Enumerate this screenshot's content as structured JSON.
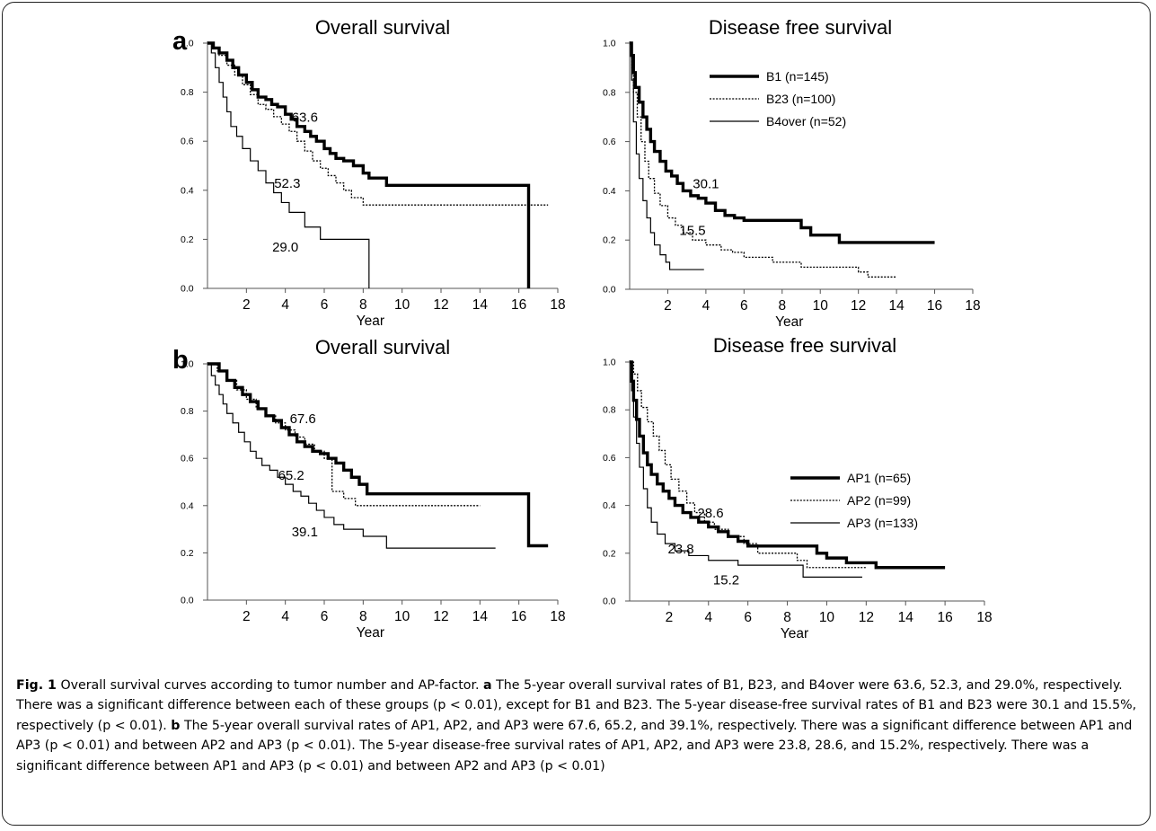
{
  "figure_label": "a",
  "figure_label_b": "b",
  "caption": {
    "fig_no": "Fig. 1",
    "title": "Overall survival curves according to tumor number and AP-factor.",
    "a_letter": "a",
    "a_text": "The 5-year overall survival rates of B1, B23, and B4over were 63.6, 52.3, and 29.0%, respectively. There was a significant difference between each of these groups (p < 0.01), except for B1 and B23. The 5-year disease-free survival rates of B1 and B23 were 30.1 and 15.5%, respectively (p < 0.01).",
    "b_letter": "b",
    "b_text": "The 5-year overall survival rates of AP1, AP2, and AP3 were 67.6, 65.2, and 39.1%, respectively. There was a significant difference between AP1 and AP3 (p < 0.01) and between AP2 and AP3 (p < 0.01). The 5-year disease-free survival rates of AP1, AP2, and AP3 were 23.8, 28.6, and 15.2%, respectively. There was a significant difference between AP1 and AP3 (p < 0.01) and between AP2 and AP3 (p < 0.01)"
  },
  "chart_data": [
    {
      "id": "a-os",
      "type": "line",
      "step": true,
      "title": "Overall survival",
      "xlabel": "Year",
      "xlim": [
        0,
        18
      ],
      "ylim": [
        0,
        1
      ],
      "xticks": [
        "2",
        "4",
        "6",
        "8",
        "10",
        "12",
        "14",
        "16",
        "18"
      ],
      "yticks": [
        "0.0",
        "0.2",
        "0.4",
        "0.6",
        "0.8",
        "1.0"
      ],
      "legend": [],
      "series": [
        {
          "style": "thick",
          "x": [
            0,
            0.3,
            0.6,
            1.0,
            1.3,
            1.6,
            2.0,
            2.3,
            2.6,
            3.0,
            3.3,
            3.6,
            4.0,
            4.3,
            4.6,
            5.0,
            5.3,
            5.6,
            6.0,
            6.3,
            6.6,
            7.0,
            7.5,
            8.0,
            8.3,
            9.2,
            16.5,
            16.5
          ],
          "y": [
            1.0,
            0.98,
            0.96,
            0.93,
            0.9,
            0.87,
            0.84,
            0.81,
            0.78,
            0.77,
            0.75,
            0.74,
            0.71,
            0.69,
            0.66,
            0.64,
            0.62,
            0.6,
            0.57,
            0.55,
            0.53,
            0.52,
            0.5,
            0.47,
            0.45,
            0.42,
            0.42,
            0.0
          ]
        },
        {
          "style": "dotted",
          "x": [
            0,
            0.3,
            0.6,
            1.0,
            1.4,
            1.8,
            2.2,
            2.6,
            3.0,
            3.4,
            3.8,
            4.2,
            4.6,
            5.0,
            5.4,
            5.8,
            6.2,
            6.6,
            7.0,
            7.4,
            8.0,
            17.5
          ],
          "y": [
            1.0,
            0.98,
            0.95,
            0.91,
            0.87,
            0.83,
            0.79,
            0.75,
            0.73,
            0.7,
            0.67,
            0.64,
            0.6,
            0.56,
            0.52,
            0.49,
            0.46,
            0.43,
            0.4,
            0.37,
            0.34,
            0.34
          ]
        },
        {
          "style": "thin",
          "x": [
            0,
            0.2,
            0.4,
            0.6,
            0.8,
            1.0,
            1.2,
            1.5,
            1.8,
            2.2,
            2.6,
            3.0,
            3.4,
            3.8,
            4.2,
            5.0,
            5.8,
            8.3,
            8.3
          ],
          "y": [
            1.0,
            0.96,
            0.9,
            0.84,
            0.78,
            0.72,
            0.66,
            0.62,
            0.57,
            0.52,
            0.48,
            0.43,
            0.39,
            0.35,
            0.31,
            0.25,
            0.2,
            0.2,
            0.0
          ]
        }
      ],
      "annotations": [
        {
          "text": "63.6",
          "x": 5.0,
          "y": 0.68
        },
        {
          "text": "52.3",
          "x": 4.1,
          "y": 0.41
        },
        {
          "text": "29.0",
          "x": 4.0,
          "y": 0.15
        }
      ]
    },
    {
      "id": "a-dfs",
      "type": "line",
      "step": true,
      "title": "Disease free survival",
      "xlabel": "Year",
      "xlim": [
        0,
        18
      ],
      "ylim": [
        0,
        1
      ],
      "xticks": [
        "2",
        "4",
        "6",
        "8",
        "10",
        "12",
        "14",
        "16",
        "18"
      ],
      "yticks": [
        "0.0",
        "0.2",
        "0.4",
        "0.6",
        "0.8",
        "1.0"
      ],
      "legend": [
        "B1 (n=145)",
        "B23 (n=100)",
        "B4over (n=52)"
      ],
      "series": [
        {
          "style": "thick",
          "x": [
            0,
            0.1,
            0.2,
            0.3,
            0.5,
            0.7,
            0.9,
            1.1,
            1.3,
            1.6,
            1.9,
            2.2,
            2.5,
            2.8,
            3.2,
            3.6,
            4.0,
            4.5,
            5.0,
            5.5,
            6.0,
            9.0,
            9.5,
            11.0,
            16.0
          ],
          "y": [
            1.0,
            0.95,
            0.88,
            0.82,
            0.76,
            0.7,
            0.65,
            0.6,
            0.56,
            0.52,
            0.48,
            0.46,
            0.43,
            0.4,
            0.38,
            0.37,
            0.35,
            0.32,
            0.3,
            0.29,
            0.28,
            0.25,
            0.22,
            0.19,
            0.19
          ]
        },
        {
          "style": "dotted",
          "x": [
            0,
            0.1,
            0.2,
            0.4,
            0.6,
            0.8,
            1.0,
            1.3,
            1.6,
            2.0,
            2.4,
            2.8,
            3.3,
            4.0,
            4.8,
            5.4,
            6.0,
            7.5,
            9.0,
            12.0,
            12.5,
            14.0
          ],
          "y": [
            1.0,
            0.9,
            0.8,
            0.7,
            0.6,
            0.52,
            0.45,
            0.39,
            0.34,
            0.29,
            0.26,
            0.23,
            0.2,
            0.18,
            0.16,
            0.15,
            0.13,
            0.11,
            0.09,
            0.07,
            0.05,
            0.05
          ]
        },
        {
          "style": "thin",
          "x": [
            0,
            0.1,
            0.2,
            0.35,
            0.5,
            0.7,
            0.9,
            1.1,
            1.3,
            1.6,
            1.9,
            2.1,
            3.9
          ],
          "y": [
            1.0,
            0.85,
            0.68,
            0.55,
            0.45,
            0.36,
            0.29,
            0.23,
            0.18,
            0.14,
            0.11,
            0.08,
            0.08
          ]
        }
      ],
      "annotations": [
        {
          "text": "30.1",
          "x": 4.0,
          "y": 0.41
        },
        {
          "text": "15.5",
          "x": 3.3,
          "y": 0.22
        }
      ]
    },
    {
      "id": "b-os",
      "type": "line",
      "step": true,
      "title": "Overall survival",
      "xlabel": "Year",
      "xlim": [
        0,
        18
      ],
      "ylim": [
        0,
        1
      ],
      "xticks": [
        "2",
        "4",
        "6",
        "8",
        "10",
        "12",
        "14",
        "16",
        "18"
      ],
      "yticks": [
        "0.0",
        "0.2",
        "0.4",
        "0.6",
        "0.8",
        "1.0"
      ],
      "legend": [],
      "series": [
        {
          "style": "thick",
          "x": [
            0,
            0.6,
            1.0,
            1.4,
            1.8,
            2.2,
            2.6,
            3.0,
            3.4,
            3.8,
            4.2,
            4.6,
            5.0,
            5.4,
            5.8,
            6.2,
            6.6,
            7.0,
            7.4,
            7.8,
            8.2,
            16.5,
            16.5,
            17.5
          ],
          "y": [
            1.0,
            0.97,
            0.93,
            0.9,
            0.87,
            0.84,
            0.81,
            0.78,
            0.76,
            0.73,
            0.7,
            0.67,
            0.65,
            0.63,
            0.62,
            0.6,
            0.58,
            0.55,
            0.52,
            0.49,
            0.45,
            0.45,
            0.23,
            0.23
          ]
        },
        {
          "style": "dotted",
          "x": [
            0,
            0.5,
            1.0,
            1.5,
            2.0,
            2.5,
            3.0,
            3.5,
            4.0,
            4.5,
            5.0,
            5.5,
            6.0,
            6.4,
            7.0,
            7.6,
            14.0
          ],
          "y": [
            1.0,
            0.97,
            0.93,
            0.89,
            0.85,
            0.81,
            0.78,
            0.75,
            0.72,
            0.69,
            0.66,
            0.63,
            0.6,
            0.46,
            0.43,
            0.4,
            0.4
          ]
        },
        {
          "style": "thin",
          "x": [
            0,
            0.2,
            0.4,
            0.6,
            0.8,
            1.0,
            1.3,
            1.6,
            1.9,
            2.2,
            2.5,
            2.8,
            3.2,
            3.6,
            4.0,
            4.4,
            4.8,
            5.2,
            5.6,
            6.0,
            6.5,
            7.0,
            8.0,
            9.2,
            14.8
          ],
          "y": [
            1.0,
            0.95,
            0.91,
            0.87,
            0.83,
            0.79,
            0.75,
            0.71,
            0.67,
            0.63,
            0.6,
            0.57,
            0.55,
            0.52,
            0.49,
            0.46,
            0.44,
            0.41,
            0.38,
            0.35,
            0.32,
            0.3,
            0.27,
            0.22,
            0.22
          ]
        }
      ],
      "annotations": [
        {
          "text": "67.6",
          "x": 4.9,
          "y": 0.75
        },
        {
          "text": "65.2",
          "x": 4.3,
          "y": 0.51
        },
        {
          "text": "39.1",
          "x": 5.0,
          "y": 0.27
        }
      ]
    },
    {
      "id": "b-dfs",
      "type": "line",
      "step": true,
      "title": "Disease free survival",
      "xlabel": "Year",
      "xlim": [
        0,
        18
      ],
      "ylim": [
        0,
        1
      ],
      "xticks": [
        "2",
        "4",
        "6",
        "8",
        "10",
        "12",
        "14",
        "16",
        "18"
      ],
      "yticks": [
        "0.0",
        "0.2",
        "0.4",
        "0.6",
        "0.8",
        "1.0"
      ],
      "legend": [
        "AP1 (n=65)",
        "AP2 (n=99)",
        "AP3 (n=133)"
      ],
      "series": [
        {
          "style": "thick",
          "x": [
            0,
            0.1,
            0.2,
            0.35,
            0.5,
            0.7,
            0.9,
            1.1,
            1.4,
            1.7,
            2.0,
            2.3,
            2.7,
            3.1,
            3.5,
            4.0,
            4.5,
            5.0,
            5.5,
            6.0,
            9.5,
            10.0,
            11.0,
            12.5,
            16.0
          ],
          "y": [
            1.0,
            0.92,
            0.84,
            0.76,
            0.69,
            0.62,
            0.57,
            0.53,
            0.49,
            0.46,
            0.43,
            0.4,
            0.37,
            0.35,
            0.33,
            0.31,
            0.29,
            0.27,
            0.25,
            0.23,
            0.2,
            0.18,
            0.16,
            0.14,
            0.14
          ]
        },
        {
          "style": "dotted",
          "x": [
            0,
            0.2,
            0.4,
            0.6,
            0.9,
            1.2,
            1.5,
            1.8,
            2.1,
            2.5,
            2.9,
            3.3,
            3.8,
            4.3,
            5.0,
            5.8,
            6.5,
            8.5,
            9.0,
            12.0
          ],
          "y": [
            1.0,
            0.95,
            0.88,
            0.81,
            0.75,
            0.69,
            0.63,
            0.57,
            0.51,
            0.46,
            0.41,
            0.37,
            0.33,
            0.3,
            0.27,
            0.24,
            0.2,
            0.17,
            0.14,
            0.14
          ]
        },
        {
          "style": "thin",
          "x": [
            0,
            0.1,
            0.2,
            0.35,
            0.5,
            0.7,
            0.9,
            1.1,
            1.4,
            1.8,
            2.3,
            3.0,
            4.0,
            5.5,
            8.8,
            11.8
          ],
          "y": [
            1.0,
            0.88,
            0.77,
            0.66,
            0.56,
            0.47,
            0.39,
            0.33,
            0.28,
            0.24,
            0.21,
            0.19,
            0.17,
            0.15,
            0.1,
            0.1
          ]
        }
      ],
      "annotations": [
        {
          "text": "28.6",
          "x": 4.1,
          "y": 0.35
        },
        {
          "text": "23.8",
          "x": 2.6,
          "y": 0.2
        },
        {
          "text": "15.2",
          "x": 4.9,
          "y": 0.07
        }
      ]
    }
  ]
}
